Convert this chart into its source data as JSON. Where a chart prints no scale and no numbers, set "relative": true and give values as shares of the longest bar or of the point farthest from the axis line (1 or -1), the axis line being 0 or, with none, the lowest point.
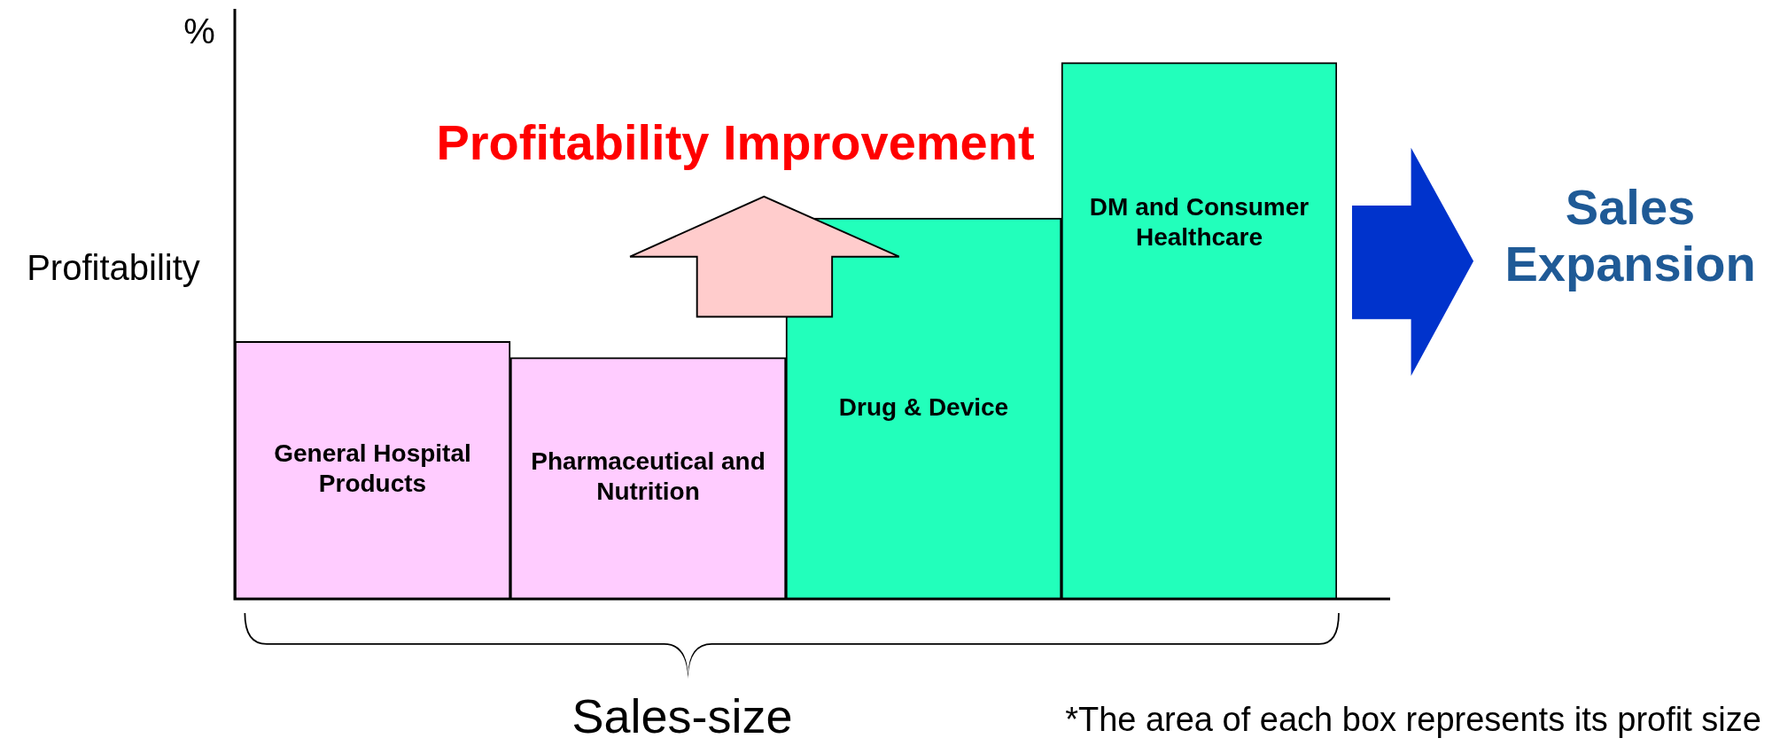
{
  "chart_data": {
    "type": "bar",
    "relative": true,
    "xlabel": "Sales-size",
    "ylabel": "Profitability",
    "categories": [
      "General Hospital Products",
      "Pharmaceutical and Nutrition",
      "Drug & Device",
      "DM and Consumer Healthcare"
    ],
    "values": [
      0.48,
      0.45,
      0.71,
      1
    ],
    "colors": [
      "#ffccff",
      "#ffccff",
      "#22ffbb",
      "#22ffbb"
    ],
    "annotations": [
      "%",
      "Profitability Improvement",
      "Sales Expansion",
      "*The area of each box represents its profit size"
    ]
  }
}
